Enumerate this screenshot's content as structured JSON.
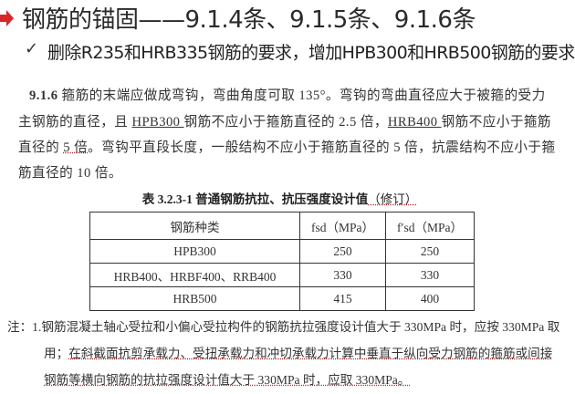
{
  "title": "钢筋的锚固——9.1.4条、9.1.5条、9.1.6条",
  "bullet": "删除R235和HRB335钢筋的要求，增加HPB300和HRB500钢筋的要求",
  "accent": "#d8262a",
  "clause": {
    "number": "9.1.6",
    "l1": " 箍筋的末端应做成弯钩，弯曲角度可取 135°。弯钩的弯曲直径应大于被箍的受力",
    "l2a": "主钢筋的直径，且 ",
    "l2b": "HPB300 ",
    "l2c": "钢筋不应小于箍筋直径的 2.5 倍，",
    "l2d": "HRB400 ",
    "l2e": "钢筋不应小于箍筋",
    "l3a": "直径的 ",
    "l3b": "5 倍",
    "l3c": "。弯钩平直段长度，一般结构不应小于箍筋直径的 5 倍，抗震结构不应小于箍",
    "l4": "筋直径的 10 倍。"
  },
  "table": {
    "caption_a": "表 3.2.3-1  普通钢筋抗拉、抗压强度设计值",
    "caption_b": "（修订）",
    "headers": [
      "钢筋种类",
      "fsd（MPa）",
      "f′sd（MPa）"
    ],
    "rows": [
      [
        "HPB300",
        "250",
        "250"
      ],
      [
        "HRB400、HRBF400、RRB400",
        "330",
        "330"
      ],
      [
        "HRB500",
        "415",
        "400"
      ]
    ]
  },
  "note": {
    "l1": "注：1.钢筋混凝土轴心受拉和小偏心受拉构件的钢筋抗拉强度设计值大于 330MPa 时，应按 330MPa 取",
    "l2a": "用；",
    "l2b": "在斜截面抗剪承载力、受扭承载力和冲切承载力计算中垂直于纵向受力钢筋的箍筋或间接",
    "l3": "钢筋等横向钢筋的抗拉强度设计值大于 330MPa 时，应取 330MPa。"
  }
}
